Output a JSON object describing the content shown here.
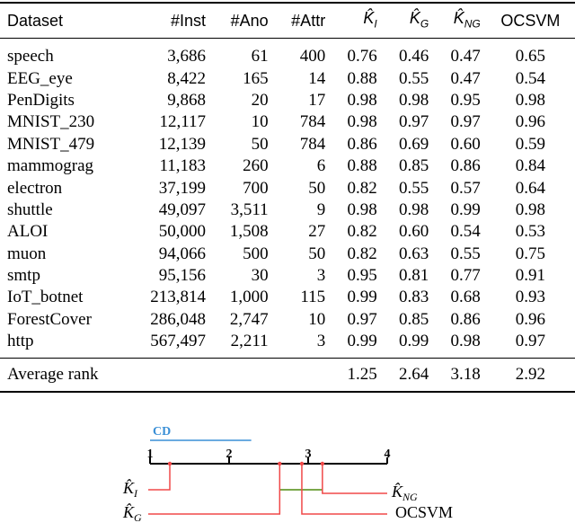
{
  "table": {
    "columns": [
      {
        "text": "Dataset"
      },
      {
        "text": "#Inst"
      },
      {
        "text": "#Ano"
      },
      {
        "text": "#Attr"
      },
      {
        "text": "K̂",
        "sub": "I"
      },
      {
        "text": "K̂",
        "sub": "G"
      },
      {
        "text": "K̂",
        "sub": "NG"
      },
      {
        "text": "OCSVM"
      }
    ],
    "rows": [
      [
        "speech",
        "3,686",
        "61",
        "400",
        "0.76",
        "0.46",
        "0.47",
        "0.65"
      ],
      [
        "EEG_eye",
        "8,422",
        "165",
        "14",
        "0.88",
        "0.55",
        "0.47",
        "0.54"
      ],
      [
        "PenDigits",
        "9,868",
        "20",
        "17",
        "0.98",
        "0.98",
        "0.95",
        "0.98"
      ],
      [
        "MNIST_230",
        "12,117",
        "10",
        "784",
        "0.98",
        "0.97",
        "0.97",
        "0.96"
      ],
      [
        "MNIST_479",
        "12,139",
        "50",
        "784",
        "0.86",
        "0.69",
        "0.60",
        "0.59"
      ],
      [
        "mammograg",
        "11,183",
        "260",
        "6",
        "0.88",
        "0.85",
        "0.86",
        "0.84"
      ],
      [
        "electron",
        "37,199",
        "700",
        "50",
        "0.82",
        "0.55",
        "0.57",
        "0.64"
      ],
      [
        "shuttle",
        "49,097",
        "3,511",
        "9",
        "0.98",
        "0.98",
        "0.99",
        "0.98"
      ],
      [
        "ALOI",
        "50,000",
        "1,508",
        "27",
        "0.82",
        "0.60",
        "0.54",
        "0.53"
      ],
      [
        "muon",
        "94,066",
        "500",
        "50",
        "0.82",
        "0.63",
        "0.55",
        "0.75"
      ],
      [
        "smtp",
        "95,156",
        "30",
        "3",
        "0.95",
        "0.81",
        "0.77",
        "0.91"
      ],
      [
        "IoT_botnet",
        "213,814",
        "1,000",
        "115",
        "0.99",
        "0.83",
        "0.68",
        "0.93"
      ],
      [
        "ForestCover",
        "286,048",
        "2,747",
        "10",
        "0.97",
        "0.85",
        "0.86",
        "0.96"
      ],
      [
        "http",
        "567,497",
        "2,211",
        "3",
        "0.99",
        "0.99",
        "0.98",
        "0.97"
      ]
    ],
    "average": {
      "label": "Average rank",
      "values": [
        1.25,
        2.64,
        3.18,
        2.92
      ]
    }
  },
  "diagram": {
    "cd_label": "CD",
    "cd_value": 1.28,
    "xlim": [
      1,
      4
    ],
    "xticks": [
      1,
      2,
      3,
      4
    ]
  }
}
